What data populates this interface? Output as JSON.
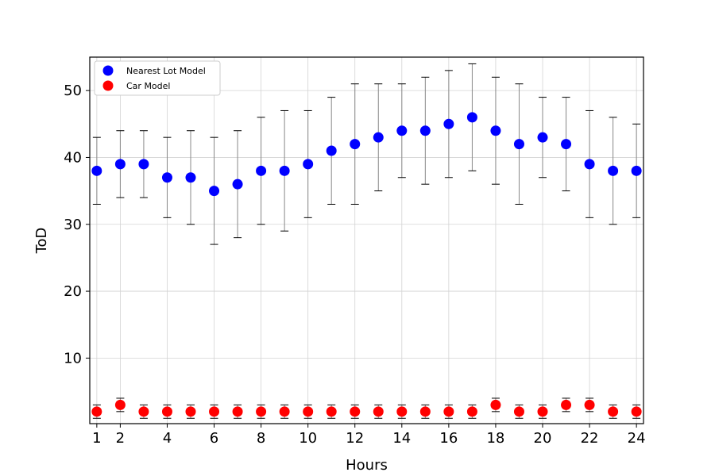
{
  "chart_data": {
    "type": "scatter",
    "title": "",
    "xlabel": "Hours",
    "ylabel": "ToD",
    "xlim": [
      0.7,
      24.3
    ],
    "ylim": [
      0.2,
      55
    ],
    "x_ticks": [
      1,
      2,
      4,
      6,
      8,
      10,
      12,
      14,
      16,
      18,
      20,
      22,
      24
    ],
    "y_ticks": [
      10,
      20,
      30,
      40,
      50
    ],
    "grid": true,
    "legend_placement": "upper-left",
    "series": [
      {
        "name": "Nearest Lot Model",
        "color": "#0000ff",
        "points": [
          {
            "x": 1,
            "y": 38,
            "lo": 33,
            "hi": 43
          },
          {
            "x": 2,
            "y": 39,
            "lo": 34,
            "hi": 44
          },
          {
            "x": 3,
            "y": 39,
            "lo": 34,
            "hi": 44
          },
          {
            "x": 4,
            "y": 37,
            "lo": 31,
            "hi": 43
          },
          {
            "x": 5,
            "y": 37,
            "lo": 30,
            "hi": 44
          },
          {
            "x": 6,
            "y": 35,
            "lo": 27,
            "hi": 43
          },
          {
            "x": 7,
            "y": 36,
            "lo": 28,
            "hi": 44
          },
          {
            "x": 8,
            "y": 38,
            "lo": 30,
            "hi": 46
          },
          {
            "x": 9,
            "y": 38,
            "lo": 29,
            "hi": 47
          },
          {
            "x": 10,
            "y": 39,
            "lo": 31,
            "hi": 47
          },
          {
            "x": 11,
            "y": 41,
            "lo": 33,
            "hi": 49
          },
          {
            "x": 12,
            "y": 42,
            "lo": 33,
            "hi": 51
          },
          {
            "x": 13,
            "y": 43,
            "lo": 35,
            "hi": 51
          },
          {
            "x": 14,
            "y": 44,
            "lo": 37,
            "hi": 51
          },
          {
            "x": 15,
            "y": 44,
            "lo": 36,
            "hi": 52
          },
          {
            "x": 16,
            "y": 45,
            "lo": 37,
            "hi": 53
          },
          {
            "x": 17,
            "y": 46,
            "lo": 38,
            "hi": 54
          },
          {
            "x": 18,
            "y": 44,
            "lo": 36,
            "hi": 52
          },
          {
            "x": 19,
            "y": 42,
            "lo": 33,
            "hi": 51
          },
          {
            "x": 20,
            "y": 43,
            "lo": 37,
            "hi": 49
          },
          {
            "x": 21,
            "y": 42,
            "lo": 35,
            "hi": 49
          },
          {
            "x": 22,
            "y": 39,
            "lo": 31,
            "hi": 47
          },
          {
            "x": 23,
            "y": 38,
            "lo": 30,
            "hi": 46
          },
          {
            "x": 24,
            "y": 38,
            "lo": 31,
            "hi": 45
          }
        ]
      },
      {
        "name": "Car Model",
        "color": "#ff0000",
        "points": [
          {
            "x": 1,
            "y": 2,
            "lo": 1,
            "hi": 3
          },
          {
            "x": 2,
            "y": 3,
            "lo": 2,
            "hi": 4
          },
          {
            "x": 3,
            "y": 2,
            "lo": 1,
            "hi": 3
          },
          {
            "x": 4,
            "y": 2,
            "lo": 1,
            "hi": 3
          },
          {
            "x": 5,
            "y": 2,
            "lo": 1,
            "hi": 3
          },
          {
            "x": 6,
            "y": 2,
            "lo": 1,
            "hi": 3
          },
          {
            "x": 7,
            "y": 2,
            "lo": 1,
            "hi": 3
          },
          {
            "x": 8,
            "y": 2,
            "lo": 1,
            "hi": 3
          },
          {
            "x": 9,
            "y": 2,
            "lo": 1,
            "hi": 3
          },
          {
            "x": 10,
            "y": 2,
            "lo": 1,
            "hi": 3
          },
          {
            "x": 11,
            "y": 2,
            "lo": 1,
            "hi": 3
          },
          {
            "x": 12,
            "y": 2,
            "lo": 1,
            "hi": 3
          },
          {
            "x": 13,
            "y": 2,
            "lo": 1,
            "hi": 3
          },
          {
            "x": 14,
            "y": 2,
            "lo": 1,
            "hi": 3
          },
          {
            "x": 15,
            "y": 2,
            "lo": 1,
            "hi": 3
          },
          {
            "x": 16,
            "y": 2,
            "lo": 1,
            "hi": 3
          },
          {
            "x": 17,
            "y": 2,
            "lo": 1,
            "hi": 3
          },
          {
            "x": 18,
            "y": 3,
            "lo": 2,
            "hi": 4
          },
          {
            "x": 19,
            "y": 2,
            "lo": 1,
            "hi": 3
          },
          {
            "x": 20,
            "y": 2,
            "lo": 1,
            "hi": 3
          },
          {
            "x": 21,
            "y": 3,
            "lo": 2,
            "hi": 4
          },
          {
            "x": 22,
            "y": 3,
            "lo": 2,
            "hi": 4
          },
          {
            "x": 23,
            "y": 2,
            "lo": 1,
            "hi": 3
          },
          {
            "x": 24,
            "y": 2,
            "lo": 1,
            "hi": 3
          }
        ]
      }
    ]
  }
}
